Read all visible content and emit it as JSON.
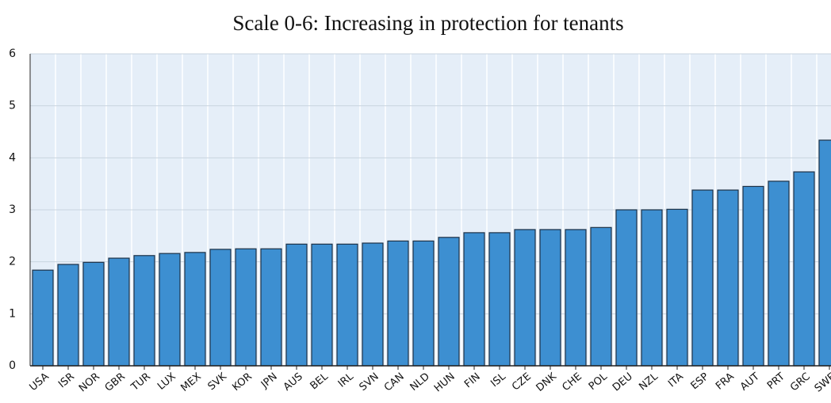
{
  "chart_data": {
    "type": "bar",
    "title": "Scale 0-6: Increasing in protection for tenants",
    "categories": [
      "USA",
      "ISR",
      "NOR",
      "GBR",
      "TUR",
      "LUX",
      "MEX",
      "SVK",
      "KOR",
      "JPN",
      "AUS",
      "BEL",
      "IRL",
      "SVN",
      "CAN",
      "NLD",
      "HUN",
      "FIN",
      "ISL",
      "CZE",
      "DNK",
      "CHE",
      "POL",
      "DEU",
      "NZL",
      "ITA",
      "ESP",
      "FRA",
      "AUT",
      "PRT",
      "GRC",
      "SWE"
    ],
    "values": [
      1.84,
      1.95,
      1.99,
      2.07,
      2.12,
      2.16,
      2.18,
      2.24,
      2.25,
      2.25,
      2.34,
      2.34,
      2.34,
      2.36,
      2.4,
      2.4,
      2.47,
      2.56,
      2.56,
      2.62,
      2.62,
      2.62,
      2.66,
      3.0,
      3.0,
      3.01,
      3.38,
      3.38,
      3.45,
      3.55,
      3.73,
      4.34
    ],
    "color": "#3d8fd1",
    "ylim": [
      0,
      6
    ],
    "yticks": [
      0,
      1,
      2,
      3,
      4,
      5,
      6
    ],
    "grid": true
  }
}
